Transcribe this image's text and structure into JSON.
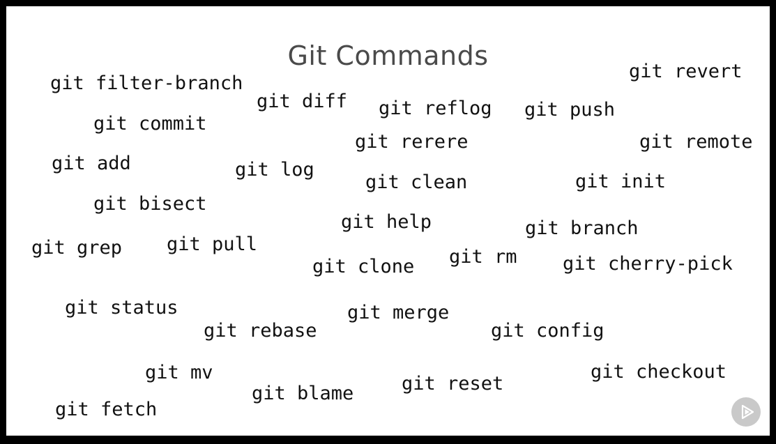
{
  "slide": {
    "title": "Git Commands",
    "commands": [
      "git filter-branch",
      "git revert",
      "git diff",
      "git reflog",
      "git push",
      "git commit",
      "git rerere",
      "git remote",
      "git add",
      "git log",
      "git clean",
      "git init",
      "git bisect",
      "git help",
      "git branch",
      "git grep",
      "git pull",
      "git rm",
      "git clone",
      "git cherry-pick",
      "git status",
      "git merge",
      "git rebase",
      "git config",
      "git mv",
      "git checkout",
      "git blame",
      "git reset",
      "git fetch"
    ]
  },
  "overlay": {
    "play_icon": "play-logo-icon",
    "accent": "#c9c9c9"
  }
}
